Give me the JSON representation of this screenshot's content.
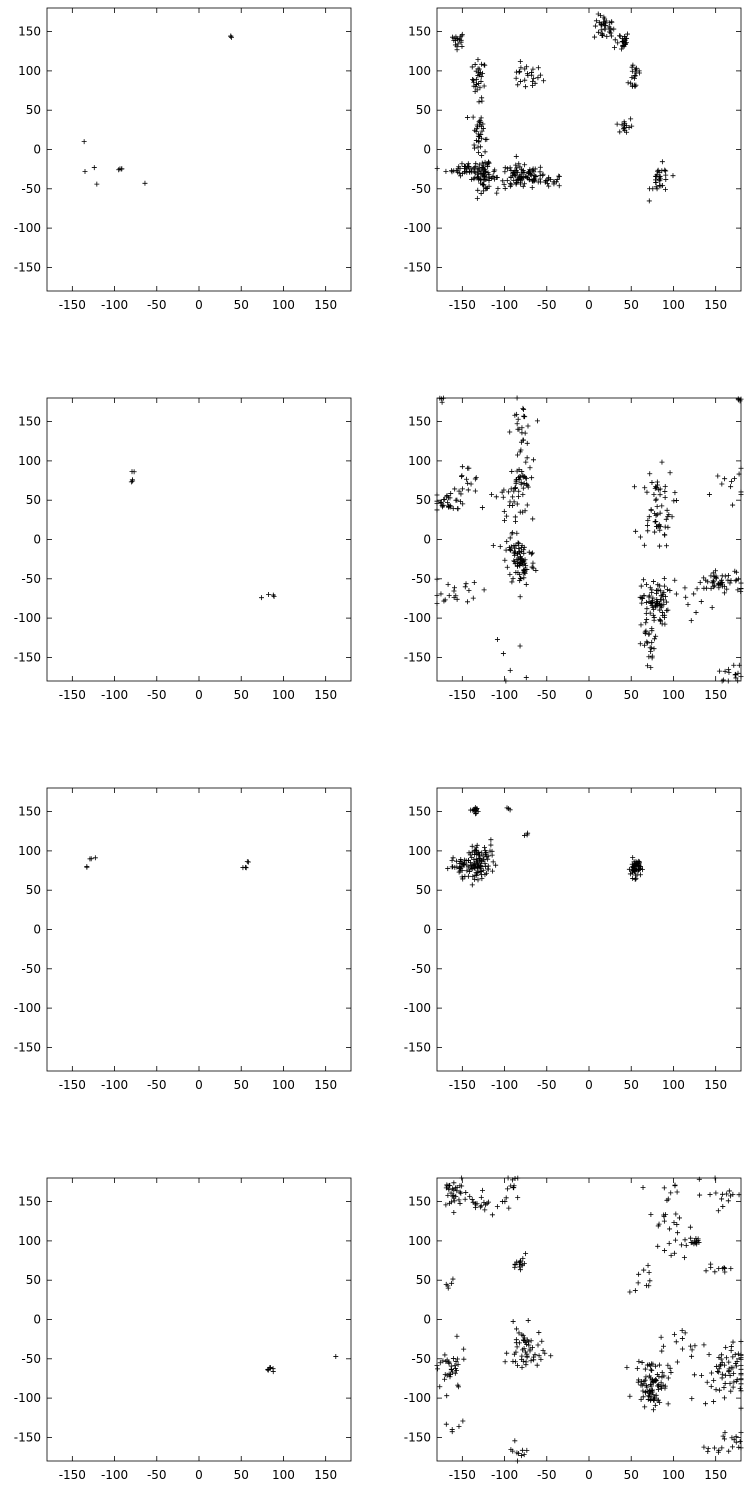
{
  "chart_data": [
    {
      "type": "scatter",
      "title": "",
      "xlabel": "",
      "ylabel": "",
      "xlim": [
        -180,
        180
      ],
      "ylim": [
        -180,
        180
      ],
      "xticks": [
        -150,
        -100,
        -50,
        0,
        50,
        100,
        150
      ],
      "yticks": [
        150,
        100,
        50,
        0,
        -50,
        -100,
        -150
      ],
      "xticklabels": [
        "-150",
        "-100",
        "-50",
        "0",
        "50",
        "100",
        "150"
      ],
      "yticklabels": [
        "150",
        "100",
        "50",
        "0",
        "-50",
        "-100",
        "-150"
      ],
      "grid": false,
      "clusters": [
        {
          "x": 38,
          "y": 143,
          "spread": [
            1,
            1
          ],
          "n": 3
        },
        {
          "x": -136,
          "y": 10,
          "spread": [
            0,
            0
          ],
          "n": 1
        },
        {
          "x": -135,
          "y": -28,
          "spread": [
            0,
            0
          ],
          "n": 1
        },
        {
          "x": -124,
          "y": -23,
          "spread": [
            0,
            0
          ],
          "n": 1
        },
        {
          "x": -121,
          "y": -44,
          "spread": [
            0,
            0
          ],
          "n": 1
        },
        {
          "x": -92,
          "y": -25,
          "spread": [
            1.5,
            1.5
          ],
          "n": 4
        },
        {
          "x": -64,
          "y": -43,
          "spread": [
            0,
            0
          ],
          "n": 1
        }
      ]
    },
    {
      "type": "scatter",
      "title": "",
      "xlabel": "",
      "ylabel": "",
      "xlim": [
        -180,
        180
      ],
      "ylim": [
        -180,
        180
      ],
      "xticks": [
        -150,
        -100,
        -50,
        0,
        50,
        100,
        150
      ],
      "yticks": [
        150,
        100,
        50,
        0,
        -50,
        -100,
        -150
      ],
      "xticklabels": [
        "-150",
        "-100",
        "-50",
        "0",
        "50",
        "100",
        "150"
      ],
      "yticklabels": [
        "150",
        "100",
        "50",
        "0",
        "-50",
        "-100",
        "-150"
      ],
      "grid": false,
      "clusters": [
        {
          "x": -155,
          "y": 140,
          "spread": [
            4,
            5
          ],
          "n": 18
        },
        {
          "x": -130,
          "y": 90,
          "spread": [
            4,
            12
          ],
          "n": 30
        },
        {
          "x": -75,
          "y": 92,
          "spread": [
            10,
            8
          ],
          "n": 25
        },
        {
          "x": 18,
          "y": 155,
          "spread": [
            6,
            8
          ],
          "n": 35
        },
        {
          "x": 38,
          "y": 138,
          "spread": [
            5,
            6
          ],
          "n": 25
        },
        {
          "x": 55,
          "y": 95,
          "spread": [
            4,
            12
          ],
          "n": 20
        },
        {
          "x": 42,
          "y": 30,
          "spread": [
            5,
            6
          ],
          "n": 15
        },
        {
          "x": -130,
          "y": 20,
          "spread": [
            4,
            18
          ],
          "n": 40
        },
        {
          "x": -145,
          "y": -25,
          "spread": [
            12,
            4
          ],
          "n": 40
        },
        {
          "x": -125,
          "y": -35,
          "spread": [
            7,
            8
          ],
          "n": 60
        },
        {
          "x": -80,
          "y": -35,
          "spread": [
            14,
            8
          ],
          "n": 90
        },
        {
          "x": -50,
          "y": -40,
          "spread": [
            10,
            4
          ],
          "n": 25
        },
        {
          "x": 85,
          "y": -40,
          "spread": [
            6,
            10
          ],
          "n": 30
        }
      ]
    },
    {
      "type": "scatter",
      "title": "",
      "xlabel": "",
      "ylabel": "",
      "xlim": [
        -180,
        180
      ],
      "ylim": [
        -180,
        180
      ],
      "xticks": [
        -150,
        -100,
        -50,
        0,
        50,
        100,
        150
      ],
      "yticks": [
        150,
        100,
        50,
        0,
        -50,
        -100,
        -150
      ],
      "xticklabels": [
        "-150",
        "-100",
        "-50",
        "0",
        "50",
        "100",
        "150"
      ],
      "yticklabels": [
        "150",
        "100",
        "50",
        "0",
        "-50",
        "-100",
        "-150"
      ],
      "grid": false,
      "clusters": [
        {
          "x": -79,
          "y": 75,
          "spread": [
            1,
            1
          ],
          "n": 3
        },
        {
          "x": -78,
          "y": 86,
          "spread": [
            1,
            1
          ],
          "n": 2
        },
        {
          "x": 74,
          "y": -74,
          "spread": [
            0,
            0
          ],
          "n": 1
        },
        {
          "x": 88,
          "y": -71,
          "spread": [
            2,
            1
          ],
          "n": 3
        }
      ]
    },
    {
      "type": "scatter",
      "title": "",
      "xlabel": "",
      "ylabel": "",
      "xlim": [
        -180,
        180
      ],
      "ylim": [
        -180,
        180
      ],
      "xticks": [
        -150,
        -100,
        -50,
        0,
        50,
        100,
        150
      ],
      "yticks": [
        150,
        100,
        50,
        0,
        -50,
        -100,
        -150
      ],
      "xticklabels": [
        "-150",
        "-100",
        "-50",
        "0",
        "50",
        "100",
        "150"
      ],
      "yticklabels": [
        "150",
        "100",
        "50",
        "0",
        "-50",
        "-100",
        "-150"
      ],
      "grid": false,
      "clusters": [
        {
          "x": -165,
          "y": 50,
          "spread": [
            10,
            6
          ],
          "n": 30
        },
        {
          "x": -145,
          "y": 70,
          "spread": [
            8,
            15
          ],
          "n": 15
        },
        {
          "x": -80,
          "y": 135,
          "spread": [
            6,
            20
          ],
          "n": 30
        },
        {
          "x": -82,
          "y": 75,
          "spread": [
            6,
            8
          ],
          "n": 30
        },
        {
          "x": -95,
          "y": 40,
          "spread": [
            15,
            15
          ],
          "n": 25
        },
        {
          "x": -80,
          "y": -30,
          "spread": [
            8,
            15
          ],
          "n": 70
        },
        {
          "x": -90,
          "y": -10,
          "spread": [
            8,
            10
          ],
          "n": 20
        },
        {
          "x": -160,
          "y": -65,
          "spread": [
            15,
            10
          ],
          "n": 20
        },
        {
          "x": 80,
          "y": 40,
          "spread": [
            10,
            25
          ],
          "n": 60
        },
        {
          "x": 78,
          "y": -80,
          "spread": [
            8,
            15
          ],
          "n": 80
        },
        {
          "x": 72,
          "y": -135,
          "spread": [
            5,
            18
          ],
          "n": 25
        },
        {
          "x": 160,
          "y": -55,
          "spread": [
            15,
            8
          ],
          "n": 45
        },
        {
          "x": 165,
          "y": 70,
          "spread": [
            10,
            10
          ],
          "n": 12
        },
        {
          "x": 130,
          "y": -70,
          "spread": [
            15,
            15
          ],
          "n": 15
        },
        {
          "x": 170,
          "y": -170,
          "spread": [
            8,
            6
          ],
          "n": 15
        },
        {
          "x": -175,
          "y": 178,
          "spread": [
            3,
            2
          ],
          "n": 4
        },
        {
          "x": 178,
          "y": 178,
          "spread": [
            2,
            2
          ],
          "n": 4
        },
        {
          "x": -100,
          "y": -160,
          "spread": [
            12,
            15
          ],
          "n": 6
        }
      ]
    },
    {
      "type": "scatter",
      "title": "",
      "xlabel": "",
      "ylabel": "",
      "xlim": [
        -180,
        180
      ],
      "ylim": [
        -180,
        180
      ],
      "xticks": [
        -150,
        -100,
        -50,
        0,
        50,
        100,
        150
      ],
      "yticks": [
        150,
        100,
        50,
        0,
        -50,
        -100,
        -150
      ],
      "xticklabels": [
        "-150",
        "-100",
        "-50",
        "0",
        "50",
        "100",
        "150"
      ],
      "yticklabels": [
        "150",
        "100",
        "50",
        "0",
        "-50",
        "-100",
        "-150"
      ],
      "grid": false,
      "clusters": [
        {
          "x": -133,
          "y": 80,
          "spread": [
            1,
            1
          ],
          "n": 2
        },
        {
          "x": -128,
          "y": 90,
          "spread": [
            2,
            1
          ],
          "n": 3
        },
        {
          "x": 55,
          "y": 78,
          "spread": [
            1,
            2
          ],
          "n": 3
        },
        {
          "x": 57,
          "y": 86,
          "spread": [
            1,
            1
          ],
          "n": 2
        }
      ]
    },
    {
      "type": "scatter",
      "title": "",
      "xlabel": "",
      "ylabel": "",
      "xlim": [
        -180,
        180
      ],
      "ylim": [
        -180,
        180
      ],
      "xticks": [
        -150,
        -100,
        -50,
        0,
        50,
        100,
        150
      ],
      "yticks": [
        150,
        100,
        50,
        0,
        -50,
        -100,
        -150
      ],
      "xticklabels": [
        "-150",
        "-100",
        "-50",
        "0",
        "50",
        "100",
        "150"
      ],
      "yticklabels": [
        "150",
        "100",
        "50",
        "0",
        "-50",
        "-100",
        "-150"
      ],
      "grid": false,
      "clusters": [
        {
          "x": -135,
          "y": 152,
          "spread": [
            4,
            2
          ],
          "n": 15
        },
        {
          "x": -145,
          "y": 80,
          "spread": [
            10,
            5
          ],
          "n": 50
        },
        {
          "x": -130,
          "y": 85,
          "spread": [
            6,
            10
          ],
          "n": 70
        },
        {
          "x": -115,
          "y": 95,
          "spread": [
            5,
            8
          ],
          "n": 12
        },
        {
          "x": -95,
          "y": 153,
          "spread": [
            2,
            2
          ],
          "n": 3
        },
        {
          "x": -75,
          "y": 122,
          "spread": [
            3,
            2
          ],
          "n": 3
        },
        {
          "x": 55,
          "y": 78,
          "spread": [
            3,
            6
          ],
          "n": 60
        }
      ]
    },
    {
      "type": "scatter",
      "title": "",
      "xlabel": "",
      "ylabel": "",
      "xlim": [
        -180,
        180
      ],
      "ylim": [
        -180,
        180
      ],
      "xticks": [
        -150,
        -100,
        -50,
        0,
        50,
        100,
        150
      ],
      "yticks": [
        150,
        100,
        50,
        0,
        -50,
        -100,
        -150
      ],
      "xticklabels": [
        "-150",
        "-100",
        "-50",
        "0",
        "50",
        "100",
        "150"
      ],
      "yticklabels": [
        "150",
        "100",
        "50",
        "0",
        "-50",
        "-100",
        "-150"
      ],
      "grid": false,
      "clusters": [
        {
          "x": 85,
          "y": -63,
          "spread": [
            2,
            2
          ],
          "n": 8
        },
        {
          "x": 162,
          "y": -47,
          "spread": [
            0,
            0
          ],
          "n": 1
        }
      ]
    },
    {
      "type": "scatter",
      "title": "",
      "xlabel": "",
      "ylabel": "",
      "xlim": [
        -180,
        180
      ],
      "ylim": [
        -180,
        180
      ],
      "xticks": [
        -150,
        -100,
        -50,
        0,
        50,
        100,
        150
      ],
      "yticks": [
        150,
        100,
        50,
        0,
        -50,
        -100,
        -150
      ],
      "xticklabels": [
        "-150",
        "-100",
        "-50",
        "0",
        "50",
        "100",
        "150"
      ],
      "yticklabels": [
        "150",
        "100",
        "50",
        "0",
        "-50",
        "-100",
        "-150"
      ],
      "grid": false,
      "clusters": [
        {
          "x": -160,
          "y": 160,
          "spread": [
            8,
            10
          ],
          "n": 35
        },
        {
          "x": -120,
          "y": 148,
          "spread": [
            15,
            6
          ],
          "n": 20
        },
        {
          "x": -90,
          "y": 170,
          "spread": [
            5,
            6
          ],
          "n": 10
        },
        {
          "x": -80,
          "y": 70,
          "spread": [
            3,
            6
          ],
          "n": 15
        },
        {
          "x": -165,
          "y": -65,
          "spread": [
            10,
            15
          ],
          "n": 35
        },
        {
          "x": -75,
          "y": -40,
          "spread": [
            10,
            15
          ],
          "n": 55
        },
        {
          "x": -85,
          "y": -170,
          "spread": [
            6,
            6
          ],
          "n": 10
        },
        {
          "x": 75,
          "y": -80,
          "spread": [
            10,
            15
          ],
          "n": 90
        },
        {
          "x": 160,
          "y": -70,
          "spread": [
            15,
            20
          ],
          "n": 70
        },
        {
          "x": 160,
          "y": -160,
          "spread": [
            10,
            8
          ],
          "n": 20
        },
        {
          "x": 95,
          "y": 120,
          "spread": [
            12,
            30
          ],
          "n": 30
        },
        {
          "x": 125,
          "y": 100,
          "spread": [
            6,
            4
          ],
          "n": 15
        },
        {
          "x": 160,
          "y": 160,
          "spread": [
            12,
            10
          ],
          "n": 15
        },
        {
          "x": 150,
          "y": 66,
          "spread": [
            8,
            3
          ],
          "n": 10
        },
        {
          "x": 65,
          "y": 50,
          "spread": [
            5,
            10
          ],
          "n": 10
        },
        {
          "x": 110,
          "y": -30,
          "spread": [
            15,
            10
          ],
          "n": 15
        },
        {
          "x": -165,
          "y": 40,
          "spread": [
            5,
            10
          ],
          "n": 5
        },
        {
          "x": -160,
          "y": -130,
          "spread": [
            6,
            10
          ],
          "n": 5
        }
      ]
    }
  ]
}
